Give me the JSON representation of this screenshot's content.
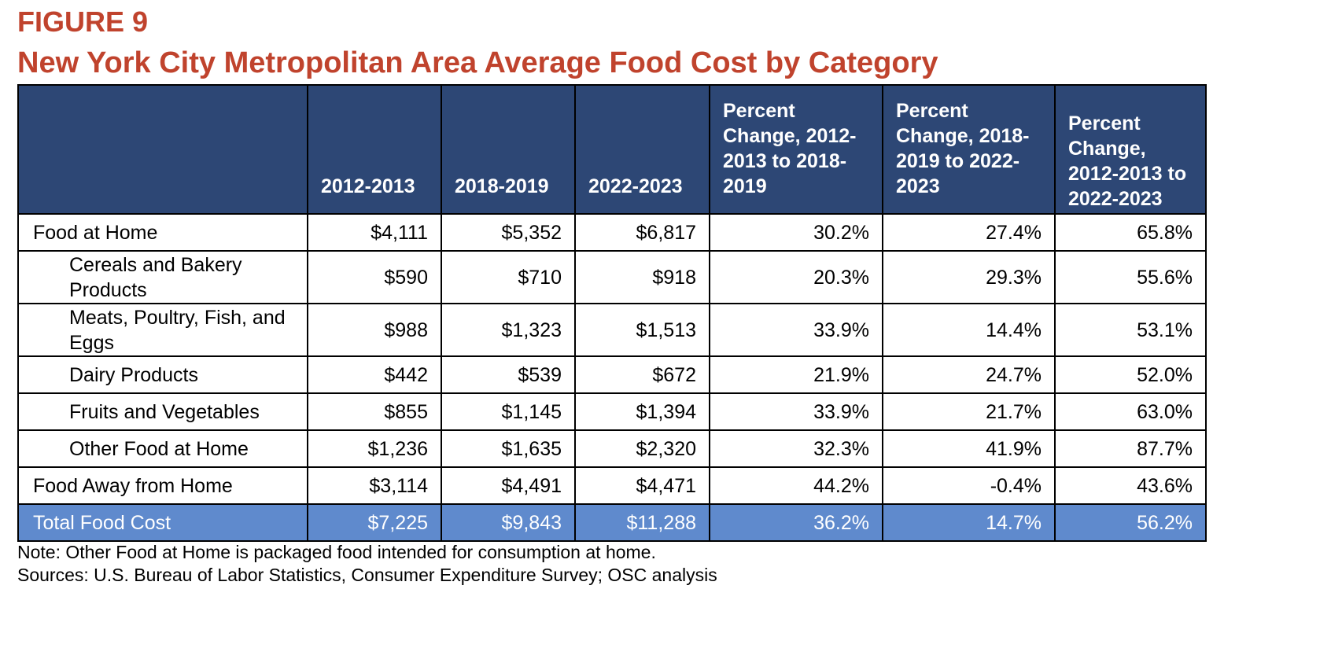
{
  "figure": {
    "label": "FIGURE 9",
    "title": "New York City Metropolitan Area Average Food Cost by Category"
  },
  "table": {
    "headers": [
      "",
      "2012-2013",
      "2018-2019",
      "2022-2023",
      "Percent Change, 2012-2013 to 2018-2019",
      "Percent Change, 2018-2019 to 2022-2023",
      "Percent Change, 2012-2013 to 2022-2023"
    ],
    "rows": [
      {
        "category": "Food at Home",
        "level": "main",
        "values": [
          "$4,111",
          "$5,352",
          "$6,817",
          "30.2%",
          "27.4%",
          "65.8%"
        ]
      },
      {
        "category": "Cereals and Bakery Products",
        "level": "sub",
        "values": [
          "$590",
          "$710",
          "$918",
          "20.3%",
          "29.3%",
          "55.6%"
        ]
      },
      {
        "category": "Meats, Poultry, Fish, and Eggs",
        "level": "sub",
        "values": [
          "$988",
          "$1,323",
          "$1,513",
          "33.9%",
          "14.4%",
          "53.1%"
        ]
      },
      {
        "category": "Dairy Products",
        "level": "sub",
        "values": [
          "$442",
          "$539",
          "$672",
          "21.9%",
          "24.7%",
          "52.0%"
        ]
      },
      {
        "category": "Fruits and Vegetables",
        "level": "sub",
        "values": [
          "$855",
          "$1,145",
          "$1,394",
          "33.9%",
          "21.7%",
          "63.0%"
        ]
      },
      {
        "category": "Other Food at Home",
        "level": "sub",
        "values": [
          "$1,236",
          "$1,635",
          "$2,320",
          "32.3%",
          "41.9%",
          "87.7%"
        ]
      },
      {
        "category": "Food Away from Home",
        "level": "main",
        "values": [
          "$3,114",
          "$4,491",
          "$4,471",
          "44.2%",
          "-0.4%",
          "43.6%"
        ]
      },
      {
        "category": "Total Food Cost",
        "level": "total",
        "values": [
          "$7,225",
          "$9,843",
          "$11,288",
          "36.2%",
          "14.7%",
          "56.2%"
        ]
      }
    ]
  },
  "notes": {
    "note": "Note: Other Food at Home is packaged food intended for consumption at home.",
    "sources": "Sources: U.S. Bureau of Labor Statistics, Consumer Expenditure Survey; OSC analysis"
  },
  "colors": {
    "title": "#c0432d",
    "header_bg": "#2d4775",
    "total_row_bg": "#5f8acd"
  }
}
